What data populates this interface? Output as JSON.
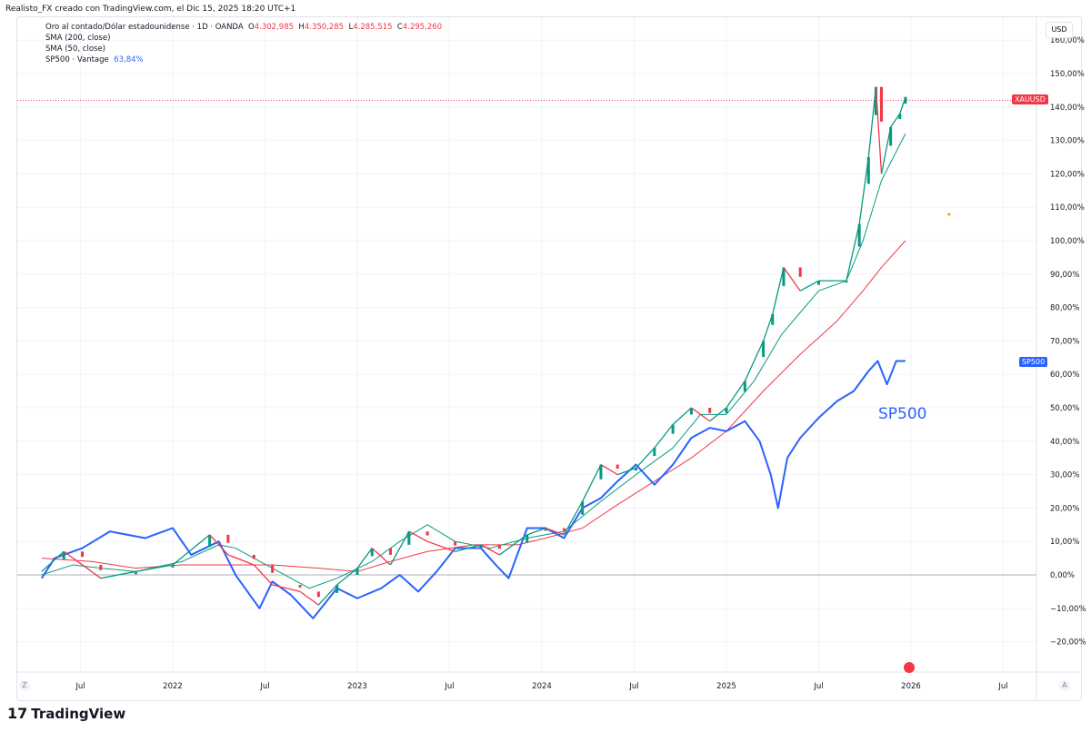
{
  "credit": "Realisto_FX creado con TradingView.com, el Dic 15, 2025 18:20 UTC+1",
  "legend": {
    "symbol": "Oro al contado/Dólar estadounidense · 1D · OANDA",
    "o_label": "O",
    "o": "4.302,985",
    "h_label": "H",
    "h": "4.350,285",
    "l_label": "L",
    "l": "4.285,515",
    "c_label": "C",
    "c": "4.295,260",
    "sma200": "SMA (200, close)",
    "sma50": "SMA (50, close)",
    "sp500": "SP500 · Vantage",
    "sp500_value": "63,84%"
  },
  "currency": "USD",
  "tags": {
    "xauusd": "XAUUSD",
    "sp500": "SP500"
  },
  "annotation": "SP500",
  "logo": "TradingView",
  "buttons": {
    "left": "Z",
    "right": "A"
  },
  "colors": {
    "up": "#089981",
    "down": "#f23645",
    "sp500": "#2962ff",
    "sma200": "#f23645",
    "sma50": "#089981",
    "zero": "#9598a1"
  },
  "chart_data": {
    "type": "line",
    "x_unit": "decimal year",
    "y_unit": "percent change",
    "ylim": [
      -25,
      162
    ],
    "yticks": [
      -20,
      -10,
      0,
      10,
      20,
      30,
      40,
      50,
      60,
      70,
      80,
      90,
      100,
      110,
      120,
      130,
      140,
      150,
      160
    ],
    "ytick_labels": [
      "−20,00%",
      "−10,00%",
      "0,00%",
      "10,00%",
      "20,00%",
      "30,00%",
      "40,00%",
      "50,00%",
      "60,00%",
      "70,00%",
      "80,00%",
      "90,00%",
      "100,00%",
      "110,00%",
      "120,00%",
      "130,00%",
      "140,00%",
      "150,00%",
      "160,00%"
    ],
    "xticks": [
      2021.5,
      2022,
      2022.5,
      2023,
      2023.5,
      2024,
      2024.5,
      2025,
      2025.5,
      2026,
      2026.5
    ],
    "xtick_labels": [
      "Jul",
      "2022",
      "Jul",
      "2023",
      "Jul",
      "2024",
      "Jul",
      "2025",
      "Jul",
      "2026",
      "Jul"
    ],
    "series": [
      {
        "name": "XAUUSD",
        "x": [
          2021.29,
          2021.41,
          2021.51,
          2021.61,
          2021.8,
          2022.0,
          2022.2,
          2022.3,
          2022.44,
          2022.54,
          2022.69,
          2022.79,
          2022.89,
          2023.0,
          2023.08,
          2023.18,
          2023.28,
          2023.38,
          2023.53,
          2023.67,
          2023.77,
          2023.92,
          2024.02,
          2024.12,
          2024.22,
          2024.32,
          2024.41,
          2024.51,
          2024.61,
          2024.71,
          2024.81,
          2024.91,
          2025.0,
          2025.1,
          2025.2,
          2025.25,
          2025.31,
          2025.4,
          2025.5,
          2025.65,
          2025.72,
          2025.77,
          2025.81,
          2025.84,
          2025.89,
          2025.94,
          2025.97
        ],
        "y": [
          1,
          7,
          3,
          -1,
          1,
          3,
          12,
          6,
          3,
          -3,
          -5,
          -9,
          -3,
          2,
          8,
          3,
          13,
          10,
          7,
          9,
          6,
          12,
          14,
          12,
          22,
          33,
          30,
          32,
          38,
          45,
          50,
          46,
          50,
          58,
          70,
          78,
          92,
          85,
          88,
          88,
          105,
          125,
          146,
          120,
          134,
          138,
          143
        ]
      },
      {
        "name": "SP500",
        "x": [
          2021.29,
          2021.36,
          2021.51,
          2021.66,
          2021.85,
          2022.0,
          2022.1,
          2022.25,
          2022.34,
          2022.47,
          2022.54,
          2022.64,
          2022.76,
          2022.89,
          2023.0,
          2023.13,
          2023.23,
          2023.33,
          2023.43,
          2023.53,
          2023.67,
          2023.75,
          2023.82,
          2023.92,
          2024.02,
          2024.12,
          2024.22,
          2024.32,
          2024.41,
          2024.51,
          2024.61,
          2024.71,
          2024.81,
          2024.91,
          2025.0,
          2025.1,
          2025.18,
          2025.24,
          2025.28,
          2025.33,
          2025.4,
          2025.5,
          2025.6,
          2025.69,
          2025.77,
          2025.82,
          2025.87,
          2025.92,
          2025.97
        ],
        "y": [
          -1,
          5,
          8,
          13,
          11,
          14,
          6,
          10,
          0,
          -10,
          -2,
          -6,
          -13,
          -4,
          -7,
          -4,
          0,
          -5,
          1,
          8,
          8,
          3,
          -1,
          14,
          14,
          11,
          20,
          23,
          28,
          33,
          27,
          33,
          41,
          44,
          43,
          46,
          40,
          30,
          20,
          35,
          41,
          47,
          52,
          55,
          61,
          64,
          57,
          64,
          64
        ]
      },
      {
        "name": "SMA (200, close)",
        "x": [
          2021.29,
          2021.56,
          2021.8,
          2022.05,
          2022.3,
          2022.54,
          2022.79,
          2023.0,
          2023.18,
          2023.38,
          2023.63,
          2023.87,
          2024.02,
          2024.22,
          2024.41,
          2024.61,
          2024.81,
          2025.0,
          2025.2,
          2025.4,
          2025.6,
          2025.74,
          2025.84,
          2025.97
        ],
        "y": [
          5,
          4,
          2,
          3,
          3,
          3,
          2,
          1,
          4,
          7,
          9,
          9,
          11,
          14,
          21,
          28,
          35,
          43,
          55,
          66,
          76,
          85,
          92,
          100
        ]
      },
      {
        "name": "SMA (50, close)",
        "x": [
          2021.29,
          2021.46,
          2021.61,
          2021.8,
          2022.05,
          2022.25,
          2022.34,
          2022.54,
          2022.74,
          2022.89,
          2023.08,
          2023.23,
          2023.38,
          2023.53,
          2023.72,
          2023.92,
          2024.12,
          2024.32,
          2024.51,
          2024.71,
          2024.86,
          2025.0,
          2025.15,
          2025.3,
          2025.5,
          2025.65,
          2025.74,
          2025.84,
          2025.97
        ],
        "y": [
          0,
          3,
          2,
          1,
          4,
          9,
          8,
          2,
          -4,
          -1,
          4,
          10,
          15,
          10,
          8,
          11,
          13,
          22,
          30,
          38,
          48,
          48,
          58,
          72,
          85,
          88,
          100,
          118,
          132
        ]
      }
    ],
    "last_values": {
      "XAUUSD": 142,
      "SP500": 63.84
    }
  }
}
